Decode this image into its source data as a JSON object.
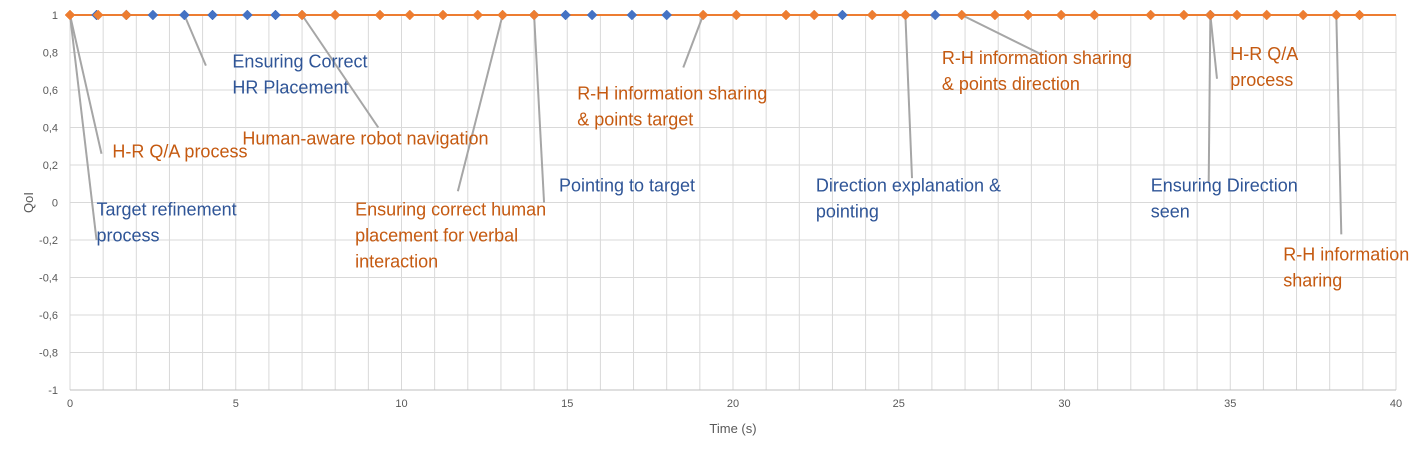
{
  "chart_data": {
    "type": "line",
    "xlabel": "Time (s)",
    "ylabel": "QoI",
    "xlim": [
      0,
      40
    ],
    "ylim": [
      -1,
      1
    ],
    "x_ticks": [
      0,
      5,
      10,
      15,
      20,
      25,
      30,
      35,
      40
    ],
    "y_ticks": [
      "1",
      "0,8",
      "0,6",
      "0,4",
      "0,2",
      "0",
      "-0,2",
      "-0,4",
      "-0,6",
      "-0,8",
      "-1"
    ],
    "grid": true,
    "colors": {
      "series_blue": "#4472C4",
      "series_orange": "#ED7D31",
      "annot_blue": "#2F5597",
      "annot_orange": "#C55A11",
      "leader": "#A6A6A6"
    },
    "series": [
      {
        "color_key": "series_blue",
        "marker": "diamond",
        "x": [
          0,
          0.8,
          1.7,
          2.5,
          3.45,
          4.3,
          5.35,
          6.2,
          7.0,
          14.0,
          14.95,
          15.75,
          16.95,
          18.0,
          23.3,
          26.1,
          34.4
        ],
        "y": [
          1,
          1,
          1,
          1,
          1,
          1,
          1,
          1,
          1,
          1,
          1,
          1,
          1,
          1,
          1,
          1,
          1
        ]
      },
      {
        "color_key": "series_orange",
        "marker": "diamond",
        "x": [
          0,
          0.85,
          1.7,
          7.0,
          8.0,
          9.35,
          10.25,
          11.25,
          12.3,
          13.05,
          14.0,
          19.1,
          20.1,
          21.6,
          22.45,
          24.2,
          25.2,
          26.9,
          27.9,
          28.9,
          29.9,
          30.9,
          32.6,
          33.6,
          34.4,
          35.2,
          36.1,
          37.2,
          38.2,
          38.9
        ],
        "y": [
          1,
          1,
          1,
          1,
          1,
          1,
          1,
          1,
          1,
          1,
          1,
          1,
          1,
          1,
          1,
          1,
          1,
          1,
          1,
          1,
          1,
          1,
          1,
          1,
          1,
          1,
          1,
          1,
          1,
          1
        ]
      }
    ],
    "annotations": [
      {
        "text": [
          "Ensuring Correct",
          "HR Placement"
        ],
        "color_key": "annot_blue",
        "point": [
          3.45,
          1
        ],
        "anchor": [
          4.1,
          0.73
        ]
      },
      {
        "text": [
          "H-R Q/A process"
        ],
        "color_key": "annot_orange",
        "point": [
          0,
          1
        ],
        "anchor": [
          0.95,
          0.26
        ]
      },
      {
        "text": [
          "Human-aware robot navigation"
        ],
        "color_key": "annot_orange",
        "point": [
          7.0,
          1
        ],
        "anchor": [
          9.3,
          0.4
        ]
      },
      {
        "text": [
          "Target refinement",
          "process"
        ],
        "color_key": "annot_blue",
        "point": [
          0,
          1
        ],
        "anchor": [
          0.8,
          -0.2
        ]
      },
      {
        "text": [
          "Ensuring correct human",
          "placement for verbal",
          "interaction"
        ],
        "color_key": "annot_orange",
        "point": [
          13.05,
          1
        ],
        "anchor": [
          11.7,
          0.06
        ]
      },
      {
        "text": [
          "Pointing to target"
        ],
        "color_key": "annot_blue",
        "point": [
          14.0,
          1
        ],
        "anchor": [
          14.3,
          0.0
        ]
      },
      {
        "text": [
          "R-H information sharing",
          "& points target"
        ],
        "color_key": "annot_orange",
        "point": [
          19.1,
          1
        ],
        "anchor": [
          18.5,
          0.72
        ]
      },
      {
        "text": [
          "Direction explanation &",
          "pointing"
        ],
        "color_key": "annot_blue",
        "point": [
          25.2,
          1
        ],
        "anchor": [
          25.4,
          0.13
        ]
      },
      {
        "text": [
          "R-H information sharing",
          "& points direction"
        ],
        "color_key": "annot_orange",
        "point": [
          26.9,
          1
        ],
        "anchor": [
          29.3,
          0.79
        ]
      },
      {
        "text": [
          "H-R Q/A",
          "process"
        ],
        "color_key": "annot_orange",
        "point": [
          34.4,
          1
        ],
        "anchor": [
          34.6,
          0.66
        ]
      },
      {
        "text": [
          "Ensuring Direction",
          "seen"
        ],
        "color_key": "annot_blue",
        "point": [
          34.4,
          1
        ],
        "anchor": [
          34.35,
          0.11
        ]
      },
      {
        "text": [
          "R-H information",
          "sharing"
        ],
        "color_key": "annot_orange",
        "point": [
          38.2,
          1
        ],
        "anchor": [
          38.35,
          -0.17
        ]
      }
    ],
    "annotation_label_pos": [
      [
        4.9,
        0.72
      ],
      [
        1.28,
        0.24
      ],
      [
        5.2,
        0.31
      ],
      [
        0.8,
        -0.07
      ],
      [
        8.6,
        -0.07
      ],
      [
        14.75,
        0.06
      ],
      [
        15.3,
        0.55
      ],
      [
        22.5,
        0.06
      ],
      [
        26.3,
        0.74
      ],
      [
        35.0,
        0.76
      ],
      [
        32.6,
        0.06
      ],
      [
        36.6,
        -0.31
      ]
    ]
  }
}
